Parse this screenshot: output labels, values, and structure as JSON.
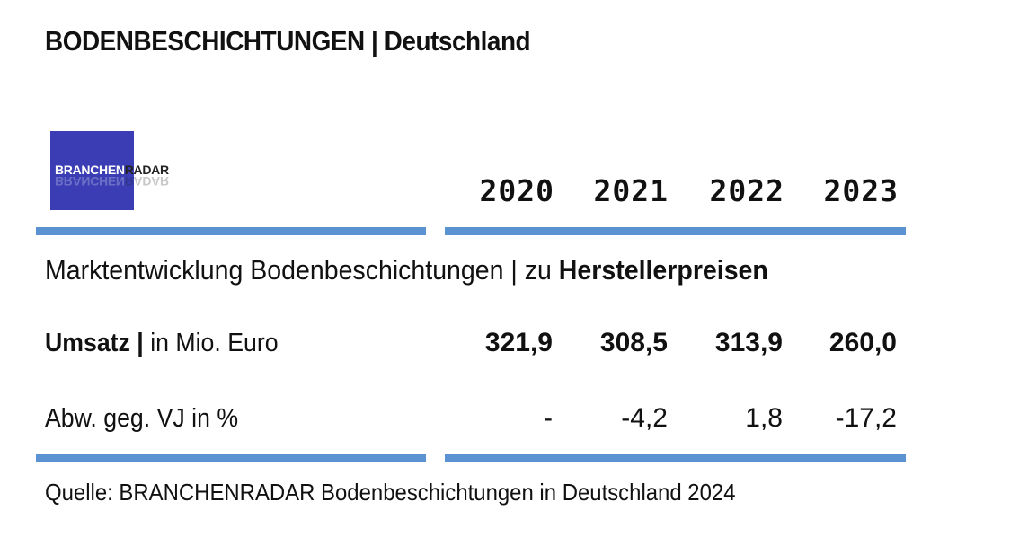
{
  "header": {
    "title": "BODENBESCHICHTUNGEN | Deutschland"
  },
  "logo": {
    "part1": "BRANCHEN",
    "part2": "RADAR",
    "background": "#3a3db3"
  },
  "colors": {
    "rule": "#5b92d2",
    "text": "#111111"
  },
  "table": {
    "section_prefix": "Marktentwicklung Bodenbeschichtungen | zu ",
    "section_emphasis": "Herstellerpreisen",
    "row1_label_bold": "Umsatz |",
    "row1_label_rest": " in Mio. Euro",
    "row2_label": "Abw. geg. VJ in %"
  },
  "source": "Quelle: BRANCHENRADAR Bodenbeschichtungen in Deutschland 2024",
  "chart_data": {
    "type": "table",
    "title": "BODENBESCHICHTUNGEN | Deutschland",
    "columns": [
      "2020",
      "2021",
      "2022",
      "2023"
    ],
    "rows": [
      {
        "label": "Umsatz | in Mio. Euro",
        "values": [
          "321,9",
          "308,5",
          "313,9",
          "260,0"
        ]
      },
      {
        "label": "Abw. geg. VJ in %",
        "values": [
          "-",
          "-4,2",
          "1,8",
          "-17,2"
        ]
      }
    ]
  }
}
